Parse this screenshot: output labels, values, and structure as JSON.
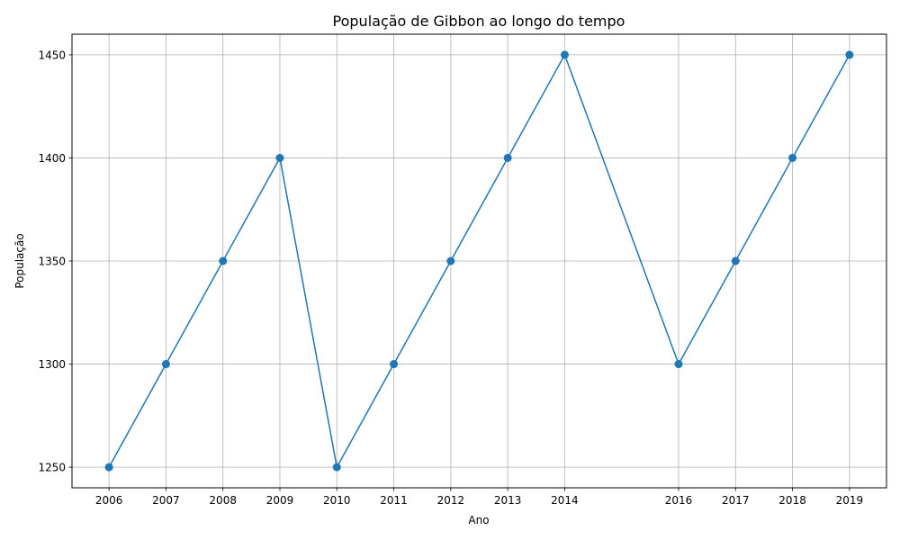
{
  "chart_data": {
    "type": "line",
    "title": "População de Gibbon ao longo do tempo",
    "xlabel": "Ano",
    "ylabel": "População",
    "x": [
      2006,
      2007,
      2008,
      2009,
      2010,
      2011,
      2012,
      2013,
      2014,
      2016,
      2017,
      2018,
      2019
    ],
    "y": [
      1250,
      1300,
      1350,
      1400,
      1250,
      1300,
      1350,
      1400,
      1450,
      1300,
      1350,
      1400,
      1450
    ],
    "xticks": [
      "2006",
      "2007",
      "2008",
      "2009",
      "2010",
      "2011",
      "2012",
      "2013",
      "2014",
      "2016",
      "2017",
      "2018",
      "2019"
    ],
    "yticks": [
      "1250",
      "1300",
      "1350",
      "1400",
      "1450"
    ],
    "xlim": [
      2005.35,
      2019.65
    ],
    "ylim": [
      1240,
      1460
    ],
    "grid": true,
    "marker": "circle",
    "color": "#1f77b4"
  }
}
